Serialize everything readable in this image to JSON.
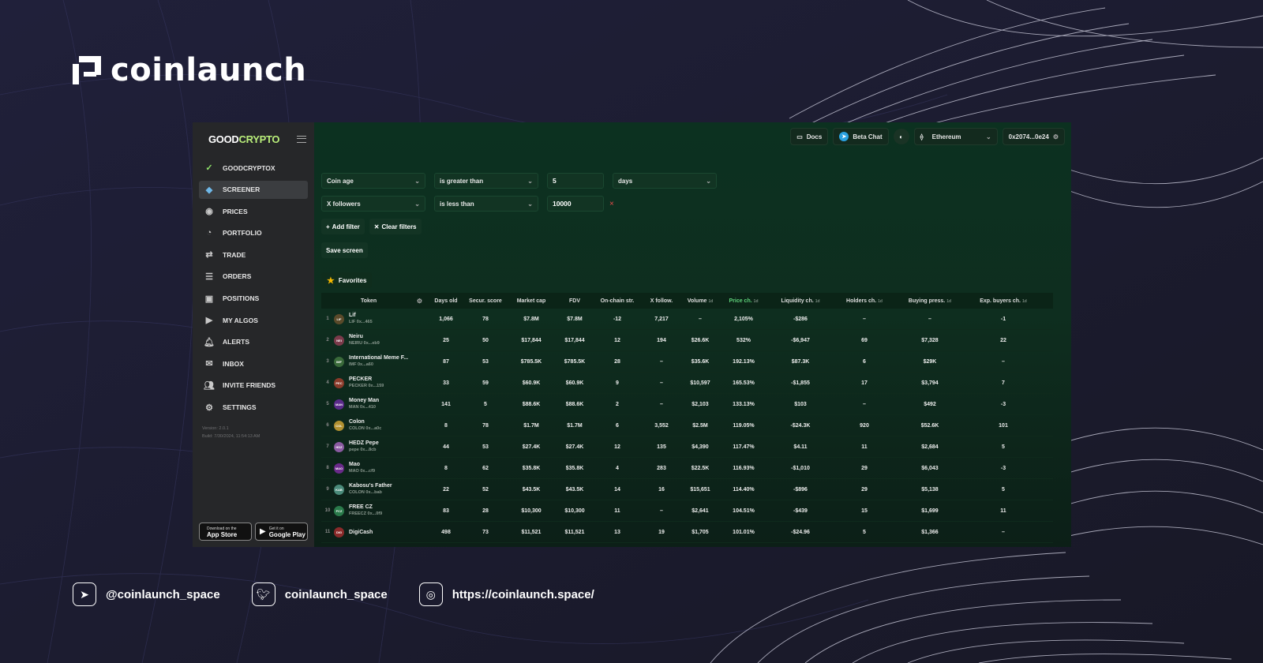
{
  "brand": {
    "name": "coinlaunch"
  },
  "app": {
    "logo": {
      "part1": "GOOD",
      "part2": "CRYPTO"
    },
    "nav": [
      {
        "label": "GOODCRYPTOX",
        "icon": "goodcryptox-icon"
      },
      {
        "label": "SCREENER",
        "icon": "diamond-icon",
        "active": true
      },
      {
        "label": "PRICES",
        "icon": "coin-icon"
      },
      {
        "label": "PORTFOLIO",
        "icon": "pie-icon"
      },
      {
        "label": "TRADE",
        "icon": "trade-arrows-icon"
      },
      {
        "label": "ORDERS",
        "icon": "orders-icon"
      },
      {
        "label": "POSITIONS",
        "icon": "positions-icon"
      },
      {
        "label": "MY ALGOS",
        "icon": "play-icon"
      },
      {
        "label": "ALERTS",
        "icon": "bell-icon"
      },
      {
        "label": "INBOX",
        "icon": "mail-icon"
      },
      {
        "label": "INVITE FRIENDS",
        "icon": "people-icon"
      },
      {
        "label": "SETTINGS",
        "icon": "gear-icon"
      }
    ],
    "version": "Version: 2.0.1",
    "build": "Build: 7/30/2024, 11:54:13 AM",
    "stores": {
      "apple_small": "Download on the",
      "apple_big": "App Store",
      "google_small": "Get it on",
      "google_big": "Google Play"
    }
  },
  "topbar": {
    "docs": "Docs",
    "beta_chat": "Beta Chat",
    "network": "Ethereum",
    "wallet": "0x2074...0e24"
  },
  "filters": [
    {
      "field": "Coin age",
      "op": "is greater than",
      "value": "5",
      "unit": "days"
    },
    {
      "field": "X followers",
      "op": "is less than",
      "value": "10000",
      "remove": "×"
    }
  ],
  "actions": {
    "add": "Add filter",
    "clear": "Clear filters",
    "save": "Save screen"
  },
  "favorites": "Favorites",
  "table": {
    "headers": [
      "Token",
      "Days old",
      "Secur. score",
      "Market cap",
      "FDV",
      "On-chain str.",
      "X follow.",
      "Volume",
      "Price ch.",
      "Liquidity ch.",
      "Holders ch.",
      "Buying press.",
      "Exp. buyers ch."
    ],
    "unit": "1d",
    "rows": [
      {
        "n": "1",
        "name": "Lif",
        "sub": "LIF 0x...465",
        "color": "#5a4a2a",
        "abbr": "LIF",
        "v": [
          "1,066",
          "78",
          "$7.8M",
          "$7.8M",
          "-12",
          "7,217",
          "–",
          "2,105%",
          "-$286",
          "–",
          "–",
          "-1"
        ]
      },
      {
        "n": "2",
        "name": "Neiru",
        "sub": "NEIRU 0x...eb9",
        "color": "#7a3a4a",
        "abbr": "NEI",
        "v": [
          "25",
          "50",
          "$17,844",
          "$17,844",
          "12",
          "194",
          "$26.6K",
          "532%",
          "-$6,947",
          "69",
          "$7,328",
          "22"
        ]
      },
      {
        "n": "3",
        "name": "International Meme F...",
        "sub": "IMF 0x...a60",
        "color": "#3a6a3a",
        "abbr": "IMF",
        "v": [
          "87",
          "53",
          "$785.5K",
          "$785.5K",
          "28",
          "–",
          "$35.6K",
          "192.13%",
          "$87.3K",
          "6",
          "$29K",
          "–"
        ]
      },
      {
        "n": "4",
        "name": "PECKER",
        "sub": "PECKER 0x...159",
        "color": "#8a3a2a",
        "abbr": "PEC",
        "v": [
          "33",
          "59",
          "$60.9K",
          "$60.9K",
          "9",
          "–",
          "$10,597",
          "165.53%",
          "-$1,855",
          "17",
          "$3,794",
          "7"
        ]
      },
      {
        "n": "5",
        "name": "Money Man",
        "sub": "MAN 0x...410",
        "color": "#5a2a8a",
        "abbr": "MAN",
        "v": [
          "141",
          "5",
          "$88.6K",
          "$88.6K",
          "2",
          "–",
          "$2,103",
          "133.13%",
          "$103",
          "–",
          "$492",
          "-3"
        ]
      },
      {
        "n": "6",
        "name": "Colon",
        "sub": "COLON 0x...a0c",
        "color": "#b09030",
        "abbr": "COL",
        "v": [
          "8",
          "78",
          "$1.7M",
          "$1.7M",
          "6",
          "3,552",
          "$2.5M",
          "119.05%",
          "-$24.3K",
          "920",
          "$52.6K",
          "101"
        ]
      },
      {
        "n": "7",
        "name": "HEDZ Pepe",
        "sub": "pepe 0x...8cb",
        "color": "#8a5aa0",
        "abbr": "HDZ",
        "v": [
          "44",
          "53",
          "$27.4K",
          "$27.4K",
          "12",
          "135",
          "$4,390",
          "117.47%",
          "$4.11",
          "11",
          "$2,684",
          "5"
        ]
      },
      {
        "n": "8",
        "name": "Mao",
        "sub": "MAO 0x...cf9",
        "color": "#6a2a8a",
        "abbr": "MAO",
        "v": [
          "8",
          "62",
          "$35.8K",
          "$35.8K",
          "4",
          "283",
          "$22.5K",
          "116.93%",
          "-$1,010",
          "29",
          "$6,043",
          "-3"
        ]
      },
      {
        "n": "9",
        "name": "Kabosu's Father",
        "sub": "COLON 0x...bab",
        "color": "#4a8a7a",
        "abbr": "KAB",
        "v": [
          "22",
          "52",
          "$43.5K",
          "$43.5K",
          "14",
          "16",
          "$15,651",
          "114.40%",
          "-$896",
          "29",
          "$5,138",
          "5"
        ]
      },
      {
        "n": "10",
        "name": "FREE CZ",
        "sub": "FREECZ 0x...0f9",
        "color": "#2a7a4a",
        "abbr": "FCZ",
        "v": [
          "83",
          "28",
          "$10,300",
          "$10,300",
          "11",
          "–",
          "$2,641",
          "104.51%",
          "-$439",
          "15",
          "$1,699",
          "11"
        ]
      },
      {
        "n": "11",
        "name": "DigiCash",
        "sub": "",
        "color": "#8a2a2a",
        "abbr": "DIG",
        "v": [
          "498",
          "73",
          "$11,521",
          "$11,521",
          "13",
          "19",
          "$1,705",
          "101.01%",
          "-$24.96",
          "5",
          "$1,366",
          "–"
        ]
      }
    ]
  },
  "footer": {
    "telegram": "@coinlaunch_space",
    "twitter": "coinlaunch_space",
    "website": "https://coinlaunch.space/"
  }
}
